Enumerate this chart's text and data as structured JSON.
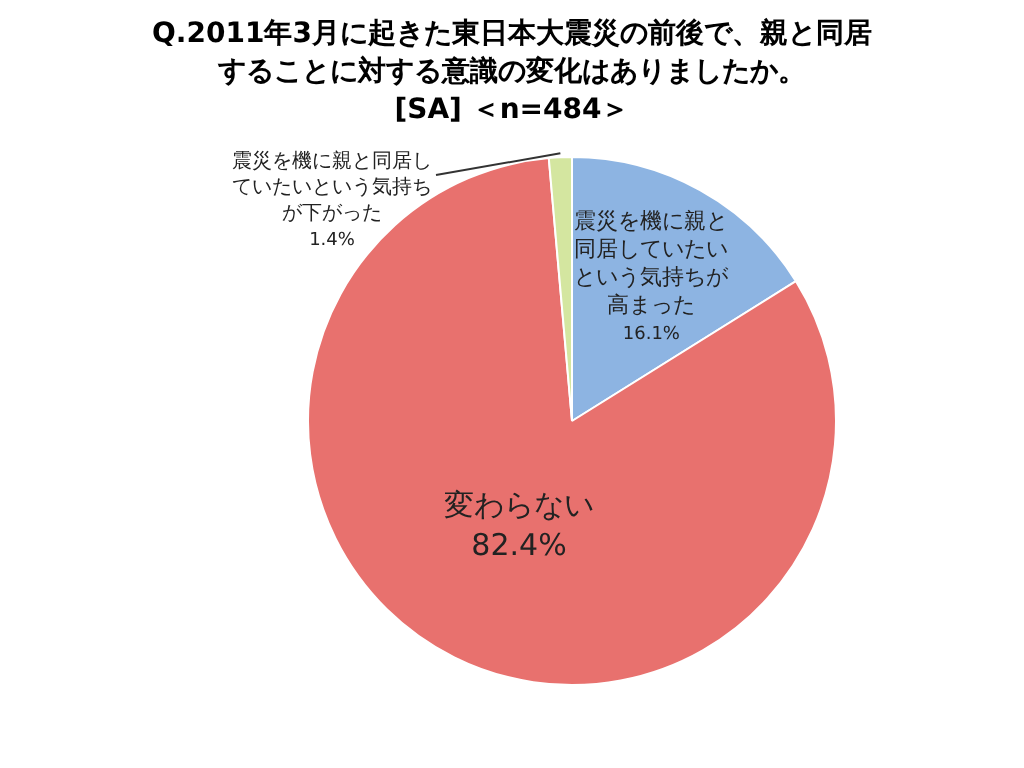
{
  "chart_data": {
    "type": "pie",
    "title": "Q.2011年3月に起きた東日本大震災の前後で、親と同居することに対する意識の変化はありましたか。",
    "subtitle": "[SA] ＜n=484＞",
    "categories": [
      "震災を機に親と同居していたいという気持ちが高まった",
      "変わらない",
      "震災を機に親と同居していたいという気持ちが下がった"
    ],
    "values": [
      16.1,
      82.4,
      1.4
    ],
    "colors": [
      "#8db4e2",
      "#e8716e",
      "#d4e6a0"
    ],
    "value_labels": [
      "16.1%",
      "82.4%",
      "1.4%"
    ],
    "legend": false
  }
}
